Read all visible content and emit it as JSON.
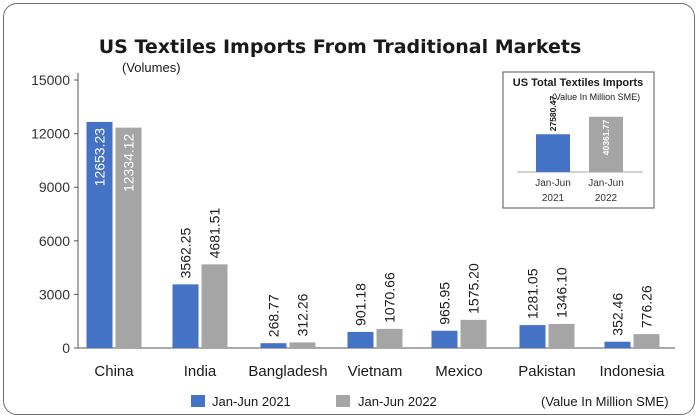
{
  "chart_data": {
    "type": "bar",
    "title": "US Textiles Imports From Traditional Markets",
    "subtitle": "(Volumes)",
    "unit_note": "(Value In Million SME)",
    "categories": [
      "China",
      "India",
      "Bangladesh",
      "Vietnam",
      "Mexico",
      "Pakistan",
      "Indonesia"
    ],
    "series": [
      {
        "name": "Jan-Jun 2021",
        "color": "#4472c4",
        "values": [
          12653.23,
          3562.25,
          268.77,
          901.18,
          965.95,
          1281.05,
          352.46
        ],
        "labels": [
          "12653.23",
          "3562.25",
          "268.77",
          "901.18",
          "965.95",
          "1281.05",
          "352.46"
        ]
      },
      {
        "name": "Jan-Jun 2022",
        "color": "#a5a5a5",
        "values": [
          12334.12,
          4681.51,
          312.26,
          1070.66,
          1575.2,
          1346.1,
          776.26
        ],
        "labels": [
          "12334.12",
          "4681.51",
          "312.26",
          "1070.66",
          "1575.20",
          "1346.10",
          "776.26"
        ]
      }
    ],
    "yticks": [
      "0",
      "3000",
      "6000",
      "9000",
      "12000",
      "15000"
    ],
    "ylim": [
      0,
      15000
    ],
    "grid": false,
    "legend_position": "bottom",
    "inset": {
      "type": "bar",
      "title": "US Total Textiles Imports",
      "subtitle": "(Value In Million SME)",
      "categories": [
        [
          "Jan-Jun",
          "2021"
        ],
        [
          "Jan-Jun",
          "2022"
        ]
      ],
      "values": [
        27580.47,
        40361.77
      ],
      "labels": [
        "27580.47",
        "40361.77"
      ],
      "colors": [
        "#4472c4",
        "#a5a5a5"
      ]
    }
  }
}
